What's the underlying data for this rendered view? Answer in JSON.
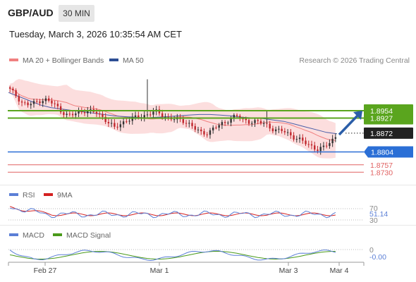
{
  "header": {
    "symbol": "GBP/AUD",
    "timeframe": "30 MIN",
    "datetime": "Tuesday, March 3, 2026 10:35:54 AM CET"
  },
  "legend": {
    "ma20": "MA 20 + Bollinger Bands",
    "ma50": "MA 50",
    "credit": "Research © 2026 Trading Central",
    "rsi": "RSI",
    "rsi_ma": "9MA",
    "macd": "MACD",
    "macd_signal": "MACD Signal"
  },
  "colors": {
    "up_candle": "#333333",
    "down_candle": "#c0272d",
    "bollinger": "#fbd3d3",
    "ma20": "#f08080",
    "ma50": "#4a5ea8",
    "resistance": "#5aa51e",
    "pivot": "#222222",
    "support_main": "#2b6fd6",
    "support_minor": "#e06060",
    "arrow": "#2b5ea8"
  },
  "levels": {
    "r2": "1.8954",
    "r1": "1.8927",
    "pivot": "1.8872",
    "s1": "1.8804",
    "s2": "1.8757",
    "s3": "1.8730"
  },
  "rsi_panel": {
    "top_level": "70",
    "bottom_level": "30",
    "current": "51.14"
  },
  "macd_panel": {
    "zero": "0",
    "current": "-0.00"
  },
  "x_labels": [
    "Feb 27",
    "Mar 1",
    "Mar 3",
    "Mar 4"
  ],
  "chart_data": {
    "type": "candlestick",
    "y_range": [
      1.87,
      1.91
    ],
    "levels": [
      1.8954,
      1.8927,
      1.8872,
      1.8804,
      1.8757,
      1.873
    ],
    "close_path": [
      1.903,
      1.901,
      1.8985,
      1.8975,
      1.898,
      1.899,
      1.8995,
      1.8985,
      1.897,
      1.895,
      1.8935,
      1.894,
      1.895,
      1.8955,
      1.895,
      1.8945,
      1.893,
      1.891,
      1.889,
      1.8905,
      1.892,
      1.8925,
      1.893,
      1.8935,
      1.8945,
      1.895,
      1.894,
      1.893,
      1.8925,
      1.892,
      1.8915,
      1.8905,
      1.8885,
      1.887,
      1.8875,
      1.889,
      1.89,
      1.891,
      1.893,
      1.8935,
      1.892,
      1.8915,
      1.8915,
      1.891,
      1.8905,
      1.889,
      1.888,
      1.888,
      1.887,
      1.8855,
      1.8845,
      1.8835,
      1.8825,
      1.881,
      1.882,
      1.884,
      1.886
    ],
    "ma50_path": [
      1.902,
      1.9005,
      1.899,
      1.8975,
      1.8965,
      1.896,
      1.8955,
      1.895,
      1.8945,
      1.894,
      1.8935,
      1.8932,
      1.893,
      1.8928,
      1.893,
      1.8932,
      1.8935,
      1.8938,
      1.894,
      1.894,
      1.8938,
      1.8935,
      1.893,
      1.8928,
      1.8925,
      1.892,
      1.8915,
      1.8905,
      1.8895,
      1.8885,
      1.8875,
      1.887
    ]
  }
}
